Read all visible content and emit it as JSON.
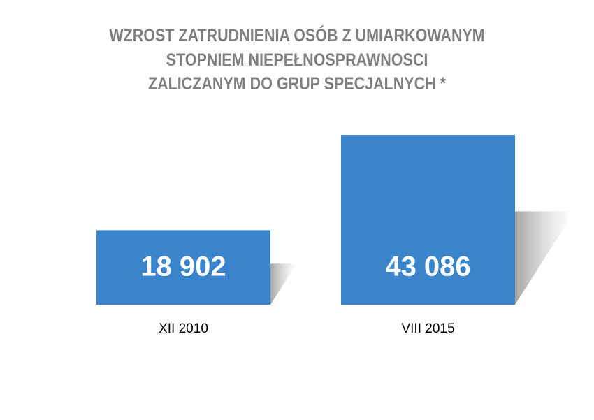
{
  "chart_data": {
    "type": "bar",
    "title": "WZROST ZATRUDNIENIA OSÓB Z UMIARKOWANYM\nSTOPNIEM NIEPEŁNOSPRAWNOSCI\nZALICZANYM DO GRUP SPECJALNYCH *",
    "categories": [
      "XII 2010",
      "VIII 2015"
    ],
    "values": [
      18902,
      43086
    ],
    "value_labels": [
      "18 902",
      "43 086"
    ],
    "color": "#3a84cc"
  }
}
